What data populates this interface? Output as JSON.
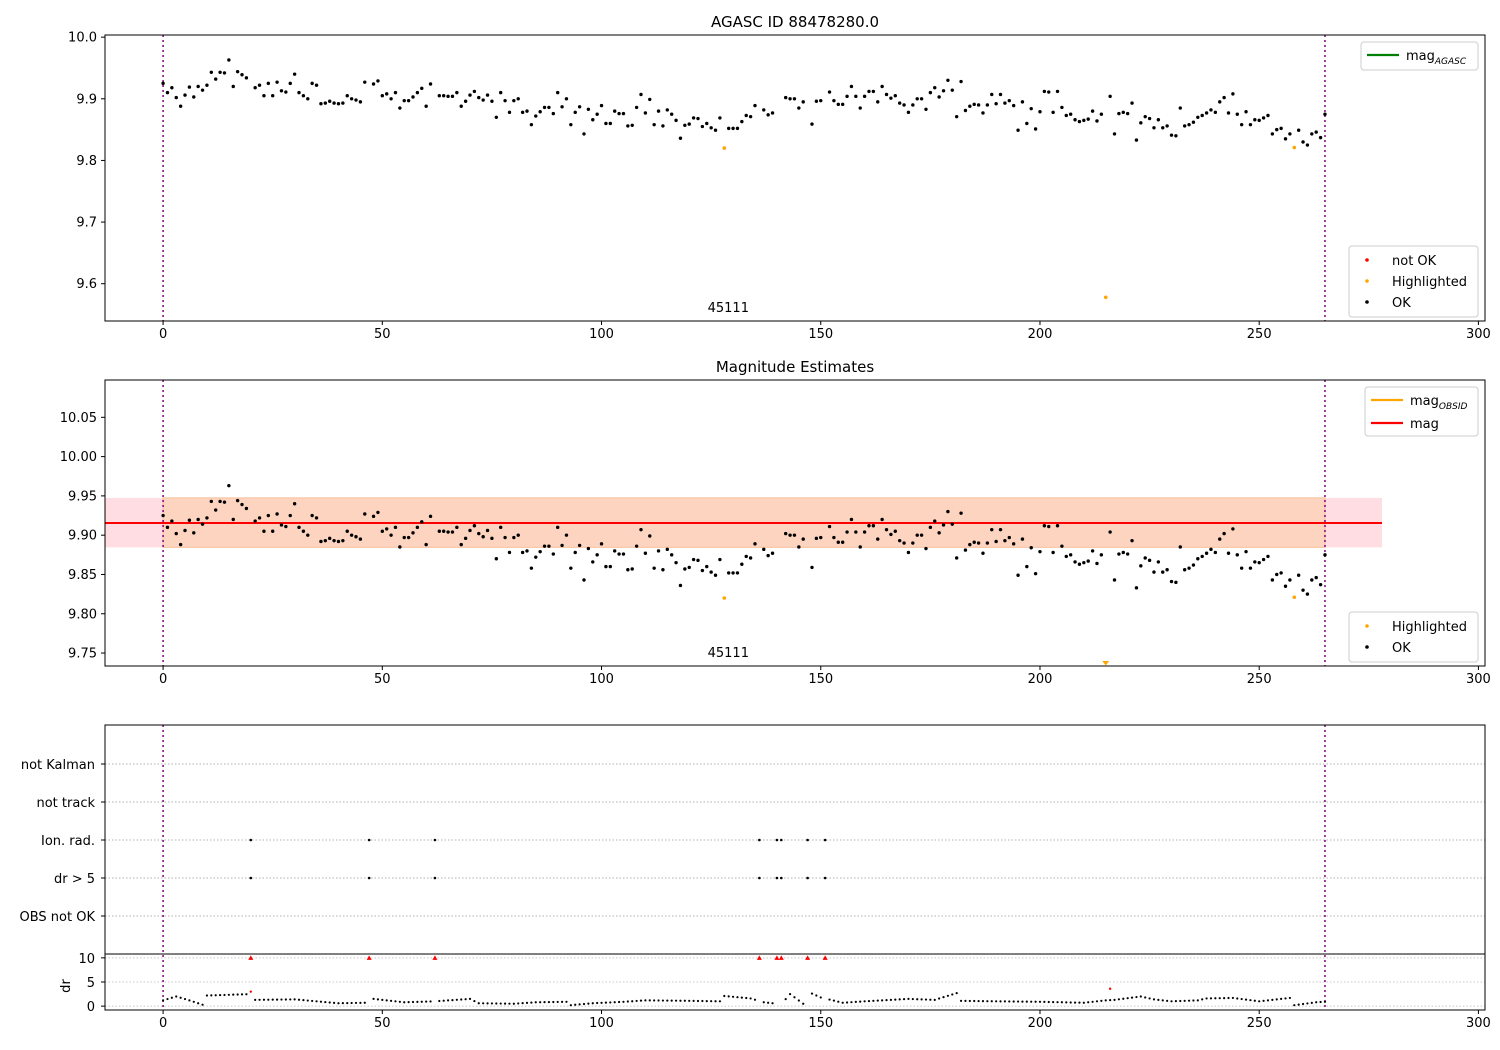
{
  "chart_data": [
    {
      "type": "scatter",
      "title": "AGASC ID 88478280.0",
      "xlim": [
        -13.25,
        301.5
      ],
      "ylim": [
        9.5395,
        10.0035
      ],
      "xticks": [
        0,
        50,
        100,
        150,
        200,
        250,
        300
      ],
      "yticks": [
        9.6,
        9.7,
        9.8,
        9.9,
        10.0
      ],
      "ytick_labels": [
        "9.6",
        "9.7",
        "9.8",
        "9.9",
        "10.0"
      ],
      "vlines": [
        0,
        265
      ],
      "obsid_labels": [
        {
          "x": 128,
          "text": "45111"
        }
      ],
      "line_legend": [
        {
          "name": "mag",
          "sub": "AGASC",
          "color": "#008000"
        }
      ],
      "marker_legend": [
        {
          "name": "not OK",
          "color": "#ff0000"
        },
        {
          "name": "Highlighted",
          "color": "#ffa500"
        },
        {
          "name": "OK",
          "color": "#000000"
        }
      ],
      "highlighted": [
        [
          128,
          9.82
        ],
        [
          215,
          9.578
        ],
        [
          258,
          9.821
        ]
      ],
      "not_ok": []
    },
    {
      "type": "scatter",
      "title": "Magnitude Estimates",
      "xlim": [
        -13.25,
        301.5
      ],
      "ylim": [
        9.7335,
        10.0975
      ],
      "xticks": [
        0,
        50,
        100,
        150,
        200,
        250,
        300
      ],
      "yticks": [
        9.75,
        9.8,
        9.85,
        9.9,
        9.95,
        10.0,
        10.05
      ],
      "ytick_labels": [
        "9.75",
        "9.80",
        "9.85",
        "9.90",
        "9.95",
        "10.00",
        "10.05"
      ],
      "vlines": [
        0,
        265
      ],
      "obsid_labels": [
        {
          "x": 128,
          "text": "45111"
        }
      ],
      "mag_line": 9.9155,
      "band": {
        "x0": -13.25,
        "x1": 278,
        "y0": 9.8845,
        "y1": 9.9475
      },
      "line_legend": [
        {
          "name": "mag",
          "sub": "OBSID",
          "color": "#ffa500"
        },
        {
          "name": "mag",
          "sub": "",
          "color": "#ff0000"
        }
      ],
      "marker_legend": [
        {
          "name": "Highlighted",
          "color": "#ffa500"
        },
        {
          "name": "OK",
          "color": "#000000"
        }
      ],
      "highlighted": [
        [
          128,
          9.82
        ],
        [
          258,
          9.821
        ]
      ],
      "offscale_triangles": [
        215
      ]
    },
    {
      "type": "scatter",
      "title": "",
      "xlim": [
        -13.25,
        301.5
      ],
      "xticks": [
        0,
        50,
        100,
        150,
        200,
        250,
        300
      ],
      "vlines": [
        0,
        265
      ],
      "flag_rows": [
        "not Kalman",
        "not track",
        "Ion. rad.",
        "dr > 5",
        "OBS not OK"
      ],
      "flags": {
        "Ion. rad.": [
          20,
          47,
          62,
          136,
          140,
          141,
          147,
          151
        ],
        "dr > 5": [
          20,
          47,
          62,
          136,
          140,
          141,
          147,
          151
        ]
      },
      "dr_ylabel": "dr",
      "dr_yticks": [
        0,
        5,
        10
      ],
      "dr_ylim": [
        -0.8,
        10.8
      ],
      "dr_high_points": [
        [
          20,
          10
        ],
        [
          47,
          10
        ],
        [
          62,
          10
        ],
        [
          136,
          10
        ],
        [
          140,
          10
        ],
        [
          141,
          10
        ],
        [
          147,
          10
        ],
        [
          151,
          10
        ]
      ],
      "dr_red_points": [
        [
          20,
          3.0
        ],
        [
          216,
          3.6
        ]
      ],
      "dr_pattern": [
        [
          0,
          1.2
        ],
        [
          3,
          2.0
        ],
        [
          6,
          1.2
        ],
        [
          9,
          0.3
        ],
        [
          10,
          2.2
        ],
        [
          20,
          2.5
        ],
        [
          21,
          1.3
        ],
        [
          30,
          1.4
        ],
        [
          40,
          0.6
        ],
        [
          46,
          0.7
        ],
        [
          48,
          1.5
        ],
        [
          55,
          0.8
        ],
        [
          62,
          1.0
        ],
        [
          70,
          1.5
        ],
        [
          72,
          0.6
        ],
        [
          80,
          0.5
        ],
        [
          85,
          0.8
        ],
        [
          92,
          0.9
        ],
        [
          93,
          0.2
        ],
        [
          98,
          0.6
        ],
        [
          105,
          0.9
        ],
        [
          110,
          1.2
        ],
        [
          120,
          1.1
        ],
        [
          127,
          1.0
        ],
        [
          128,
          2.1
        ],
        [
          134,
          1.6
        ],
        [
          137,
          0.8
        ],
        [
          141,
          0.4
        ],
        [
          143,
          2.5
        ],
        [
          146,
          0.5
        ],
        [
          148,
          2.6
        ],
        [
          150,
          1.8
        ],
        [
          155,
          0.7
        ],
        [
          160,
          1.0
        ],
        [
          170,
          1.5
        ],
        [
          176,
          1.3
        ],
        [
          181,
          2.7
        ],
        [
          182,
          1.1
        ],
        [
          190,
          1.0
        ],
        [
          200,
          0.9
        ],
        [
          210,
          0.7
        ],
        [
          215,
          1.2
        ],
        [
          217,
          1.3
        ],
        [
          223,
          2.0
        ],
        [
          226,
          1.4
        ],
        [
          230,
          1.0
        ],
        [
          236,
          1.2
        ],
        [
          238,
          1.6
        ],
        [
          244,
          1.7
        ],
        [
          250,
          1.0
        ],
        [
          257,
          1.7
        ],
        [
          258,
          0.2
        ],
        [
          263,
          0.8
        ],
        [
          265,
          0.9
        ]
      ]
    }
  ],
  "mag_series": [
    [
      0,
      9.925
    ],
    [
      1,
      9.91
    ],
    [
      2,
      9.918
    ],
    [
      3,
      9.902
    ],
    [
      4,
      9.888
    ],
    [
      5,
      9.906
    ],
    [
      6,
      9.919
    ],
    [
      7,
      9.903
    ],
    [
      8,
      9.92
    ],
    [
      9,
      9.914
    ],
    [
      10,
      9.922
    ],
    [
      11,
      9.943
    ],
    [
      12,
      9.932
    ],
    [
      13,
      9.943
    ],
    [
      14,
      9.942
    ],
    [
      15,
      9.963
    ],
    [
      16,
      9.92
    ],
    [
      17,
      9.944
    ],
    [
      18,
      9.939
    ],
    [
      19,
      9.934
    ],
    [
      21,
      9.918
    ],
    [
      22,
      9.922
    ],
    [
      23,
      9.905
    ],
    [
      24,
      9.925
    ],
    [
      25,
      9.905
    ],
    [
      26,
      9.927
    ],
    [
      27,
      9.913
    ],
    [
      28,
      9.911
    ],
    [
      29,
      9.925
    ],
    [
      30,
      9.94
    ],
    [
      31,
      9.91
    ],
    [
      32,
      9.905
    ],
    [
      33,
      9.9
    ],
    [
      34,
      9.925
    ],
    [
      35,
      9.922
    ],
    [
      36,
      9.892
    ],
    [
      37,
      9.893
    ],
    [
      38,
      9.896
    ],
    [
      39,
      9.893
    ],
    [
      40,
      9.892
    ],
    [
      41,
      9.893
    ],
    [
      42,
      9.905
    ],
    [
      43,
      9.9
    ],
    [
      44,
      9.898
    ],
    [
      45,
      9.895
    ],
    [
      46,
      9.927
    ],
    [
      48,
      9.924
    ],
    [
      49,
      9.929
    ],
    [
      50,
      9.905
    ],
    [
      51,
      9.908
    ],
    [
      52,
      9.9
    ],
    [
      53,
      9.91
    ],
    [
      54,
      9.885
    ],
    [
      55,
      9.897
    ],
    [
      56,
      9.897
    ],
    [
      57,
      9.903
    ],
    [
      58,
      9.91
    ],
    [
      59,
      9.917
    ],
    [
      60,
      9.888
    ],
    [
      61,
      9.924
    ],
    [
      63,
      9.905
    ],
    [
      64,
      9.905
    ],
    [
      65,
      9.904
    ],
    [
      66,
      9.904
    ],
    [
      67,
      9.91
    ],
    [
      68,
      9.888
    ],
    [
      69,
      9.896
    ],
    [
      70,
      9.906
    ],
    [
      71,
      9.912
    ],
    [
      72,
      9.902
    ],
    [
      73,
      9.898
    ],
    [
      74,
      9.906
    ],
    [
      75,
      9.896
    ],
    [
      76,
      9.87
    ],
    [
      77,
      9.91
    ],
    [
      78,
      9.897
    ],
    [
      79,
      9.878
    ],
    [
      80,
      9.897
    ],
    [
      81,
      9.9
    ],
    [
      82,
      9.878
    ],
    [
      83,
      9.88
    ],
    [
      84,
      9.858
    ],
    [
      85,
      9.872
    ],
    [
      86,
      9.879
    ],
    [
      87,
      9.886
    ],
    [
      88,
      9.886
    ],
    [
      89,
      9.876
    ],
    [
      90,
      9.91
    ],
    [
      91,
      9.887
    ],
    [
      92,
      9.9
    ],
    [
      93,
      9.858
    ],
    [
      94,
      9.878
    ],
    [
      95,
      9.887
    ],
    [
      96,
      9.843
    ],
    [
      97,
      9.883
    ],
    [
      98,
      9.866
    ],
    [
      99,
      9.875
    ],
    [
      100,
      9.889
    ],
    [
      101,
      9.86
    ],
    [
      102,
      9.86
    ],
    [
      103,
      9.88
    ],
    [
      104,
      9.876
    ],
    [
      105,
      9.876
    ],
    [
      106,
      9.856
    ],
    [
      107,
      9.857
    ],
    [
      108,
      9.886
    ],
    [
      109,
      9.907
    ],
    [
      110,
      9.877
    ],
    [
      111,
      9.899
    ],
    [
      112,
      9.858
    ],
    [
      113,
      9.88
    ],
    [
      114,
      9.856
    ],
    [
      115,
      9.882
    ],
    [
      116,
      9.875
    ],
    [
      117,
      9.865
    ],
    [
      118,
      9.836
    ],
    [
      119,
      9.857
    ],
    [
      120,
      9.859
    ],
    [
      121,
      9.869
    ],
    [
      122,
      9.868
    ],
    [
      123,
      9.855
    ],
    [
      124,
      9.86
    ],
    [
      125,
      9.853
    ],
    [
      126,
      9.849
    ],
    [
      127,
      9.869
    ],
    [
      129,
      9.852
    ],
    [
      130,
      9.852
    ],
    [
      131,
      9.852
    ],
    [
      132,
      9.863
    ],
    [
      133,
      9.873
    ],
    [
      134,
      9.871
    ],
    [
      135,
      9.889
    ],
    [
      137,
      9.882
    ],
    [
      138,
      9.874
    ],
    [
      139,
      9.877
    ],
    [
      142,
      9.902
    ],
    [
      143,
      9.9
    ],
    [
      144,
      9.9
    ],
    [
      145,
      9.885
    ],
    [
      146,
      9.895
    ],
    [
      148,
      9.859
    ],
    [
      149,
      9.896
    ],
    [
      150,
      9.897
    ],
    [
      152,
      9.911
    ],
    [
      153,
      9.897
    ],
    [
      154,
      9.891
    ],
    [
      155,
      9.891
    ],
    [
      156,
      9.904
    ],
    [
      157,
      9.92
    ],
    [
      158,
      9.904
    ],
    [
      159,
      9.885
    ],
    [
      160,
      9.904
    ],
    [
      161,
      9.912
    ],
    [
      162,
      9.912
    ],
    [
      163,
      9.895
    ],
    [
      164,
      9.92
    ],
    [
      165,
      9.907
    ],
    [
      166,
      9.901
    ],
    [
      167,
      9.905
    ],
    [
      168,
      9.893
    ],
    [
      169,
      9.89
    ],
    [
      170,
      9.878
    ],
    [
      171,
      9.89
    ],
    [
      172,
      9.9
    ],
    [
      173,
      9.9
    ],
    [
      174,
      9.883
    ],
    [
      175,
      9.91
    ],
    [
      176,
      9.918
    ],
    [
      177,
      9.903
    ],
    [
      178,
      9.913
    ],
    [
      179,
      9.93
    ],
    [
      180,
      9.914
    ],
    [
      181,
      9.871
    ],
    [
      182,
      9.928
    ],
    [
      183,
      9.881
    ],
    [
      184,
      9.888
    ],
    [
      185,
      9.891
    ],
    [
      186,
      9.89
    ],
    [
      187,
      9.877
    ],
    [
      188,
      9.89
    ],
    [
      189,
      9.907
    ],
    [
      190,
      9.892
    ],
    [
      191,
      9.907
    ],
    [
      192,
      9.893
    ],
    [
      193,
      9.897
    ],
    [
      194,
      9.889
    ],
    [
      195,
      9.849
    ],
    [
      196,
      9.895
    ],
    [
      197,
      9.86
    ],
    [
      198,
      9.884
    ],
    [
      199,
      9.851
    ],
    [
      200,
      9.879
    ],
    [
      201,
      9.912
    ],
    [
      202,
      9.911
    ],
    [
      203,
      9.878
    ],
    [
      204,
      9.912
    ],
    [
      205,
      9.886
    ],
    [
      206,
      9.873
    ],
    [
      207,
      9.875
    ],
    [
      208,
      9.866
    ],
    [
      209,
      9.863
    ],
    [
      210,
      9.865
    ],
    [
      211,
      9.867
    ],
    [
      212,
      9.88
    ],
    [
      213,
      9.864
    ],
    [
      214,
      9.875
    ],
    [
      216,
      9.904
    ],
    [
      217,
      9.843
    ],
    [
      218,
      9.876
    ],
    [
      219,
      9.878
    ],
    [
      220,
      9.876
    ],
    [
      221,
      9.893
    ],
    [
      222,
      9.833
    ],
    [
      223,
      9.861
    ],
    [
      224,
      9.871
    ],
    [
      225,
      9.868
    ],
    [
      226,
      9.853
    ],
    [
      227,
      9.866
    ],
    [
      228,
      9.853
    ],
    [
      229,
      9.856
    ],
    [
      230,
      9.841
    ],
    [
      231,
      9.84
    ],
    [
      232,
      9.885
    ],
    [
      233,
      9.856
    ],
    [
      234,
      9.858
    ],
    [
      235,
      9.862
    ],
    [
      236,
      9.87
    ],
    [
      237,
      9.873
    ],
    [
      238,
      9.877
    ],
    [
      239,
      9.882
    ],
    [
      240,
      9.878
    ],
    [
      241,
      9.895
    ],
    [
      242,
      9.902
    ],
    [
      243,
      9.877
    ],
    [
      244,
      9.908
    ],
    [
      245,
      9.875
    ],
    [
      246,
      9.858
    ],
    [
      247,
      9.879
    ],
    [
      248,
      9.858
    ],
    [
      249,
      9.866
    ],
    [
      250,
      9.865
    ],
    [
      251,
      9.869
    ],
    [
      252,
      9.873
    ],
    [
      253,
      9.843
    ],
    [
      254,
      9.85
    ],
    [
      255,
      9.852
    ],
    [
      256,
      9.835
    ],
    [
      257,
      9.843
    ],
    [
      259,
      9.849
    ],
    [
      260,
      9.83
    ],
    [
      261,
      9.825
    ],
    [
      262,
      9.843
    ],
    [
      263,
      9.846
    ],
    [
      264,
      9.837
    ],
    [
      265,
      9.875
    ]
  ]
}
